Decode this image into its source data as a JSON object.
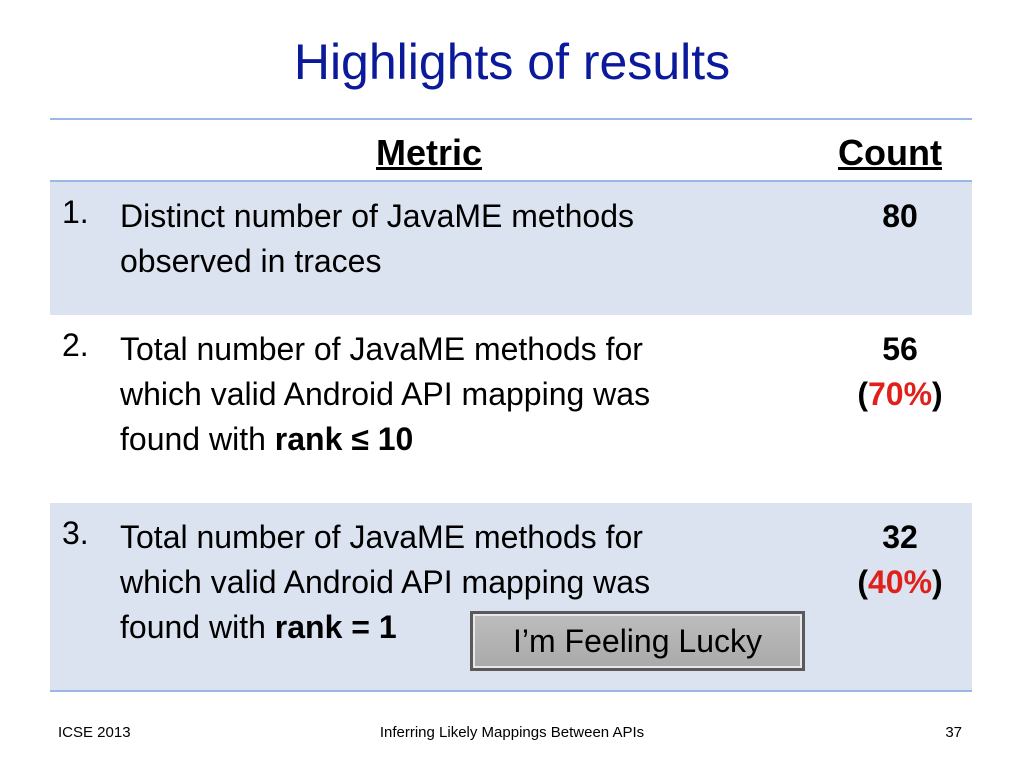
{
  "slide": {
    "title": "Highlights of results"
  },
  "table": {
    "header": {
      "metric": "Metric",
      "count": "Count"
    },
    "rows": [
      {
        "number": "1.",
        "line1": "Distinct number of JavaME methods",
        "line2": "observed in traces",
        "count": "80"
      },
      {
        "number": "2.",
        "line1": "Total number of JavaME methods for",
        "line2": "which valid Android API mapping was",
        "line3_prefix": "found with ",
        "line3_bold": "rank ≤ 10",
        "count": "56",
        "pct_open": "(",
        "pct": "70%",
        "pct_close": ")"
      },
      {
        "number": "3.",
        "line1": "Total number of JavaME methods for",
        "line2": "which valid Android API mapping was",
        "line3_prefix": "found with ",
        "line3_bold": "rank = 1",
        "count": "32",
        "pct_open": "(",
        "pct": "40%",
        "pct_close": ")"
      }
    ]
  },
  "button": {
    "label": "I’m Feeling Lucky"
  },
  "footer": {
    "left": "ICSE 2013",
    "center": "Inferring Likely Mappings Between APIs",
    "right": "37"
  },
  "colors": {
    "title": "#0a1a9a",
    "shaded_row": "#dbe3f1",
    "rule": "#9bb7e6",
    "percent": "#e0201a"
  }
}
